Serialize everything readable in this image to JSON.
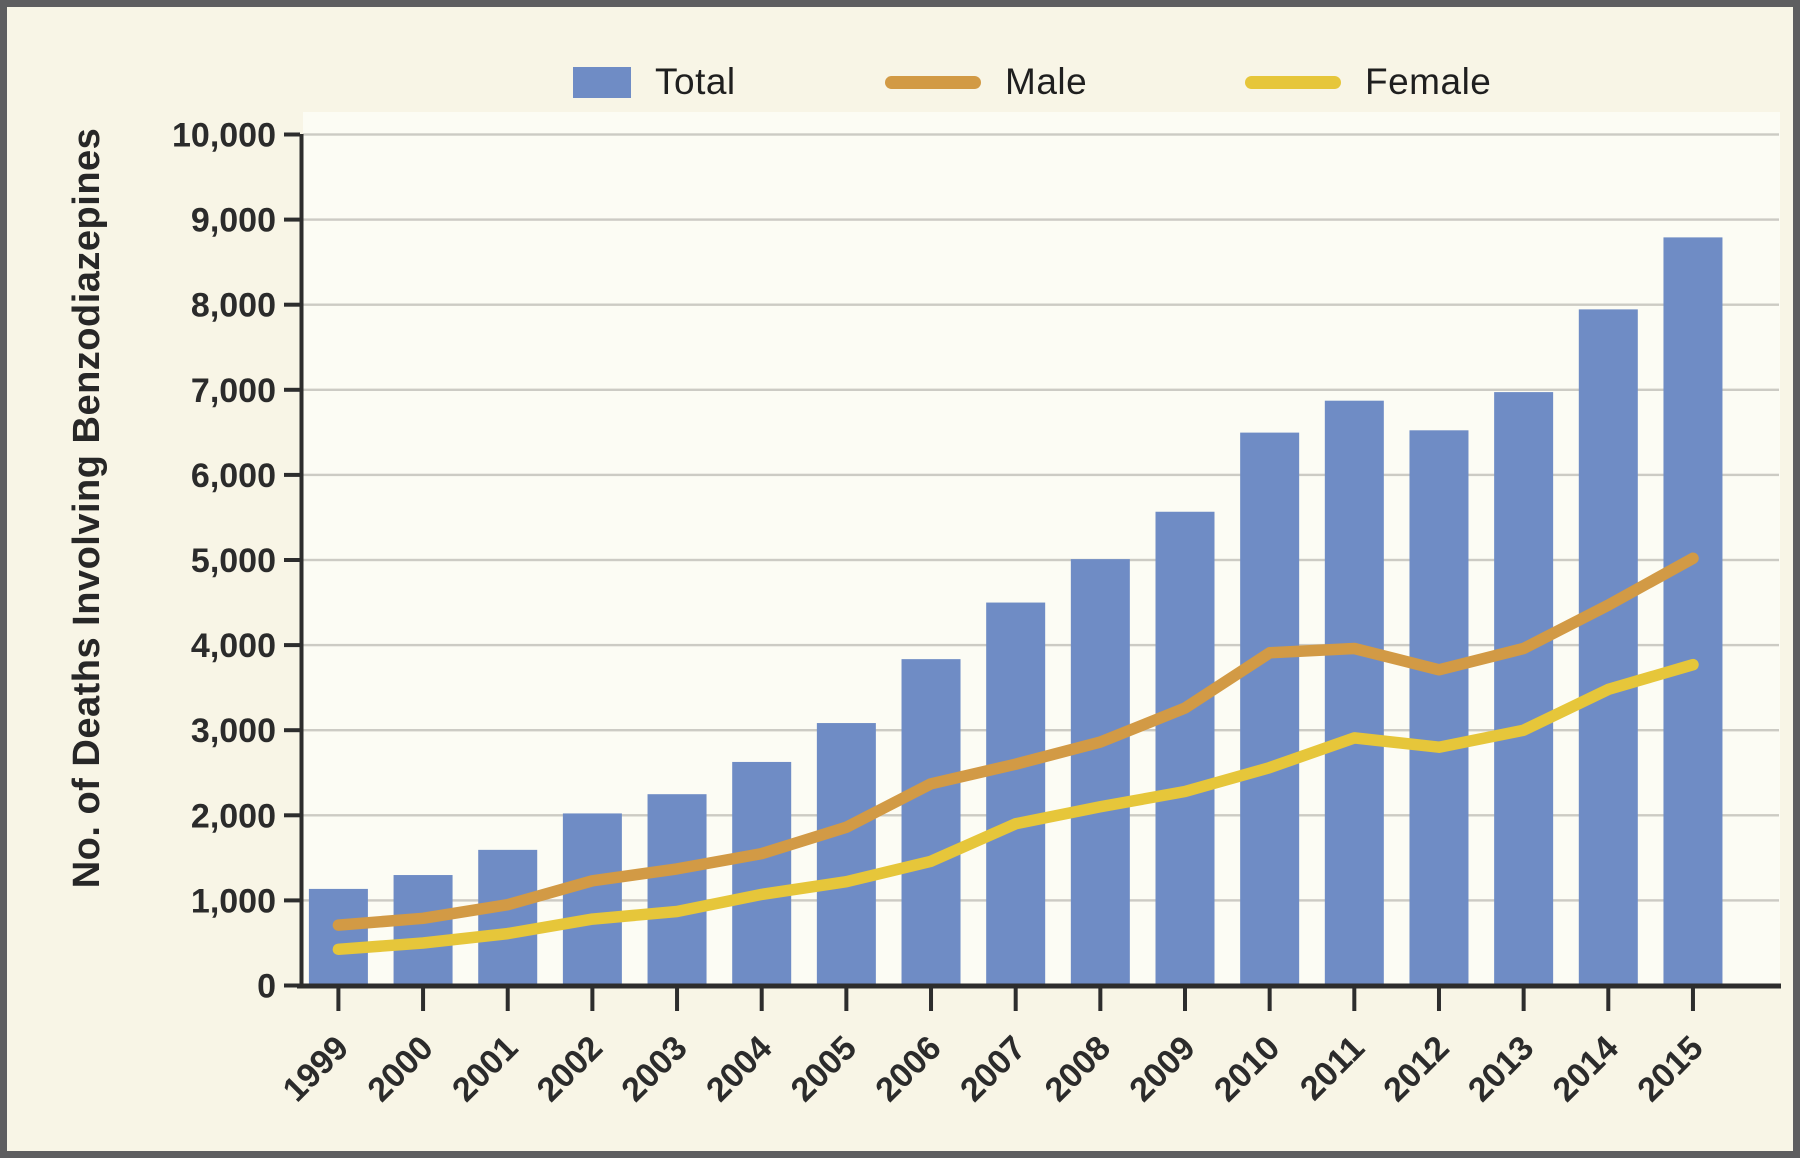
{
  "figure": {
    "ylabel": "No. of Deaths Involving Benzodiazepines",
    "legend": [
      {
        "label": "Total",
        "swatch": "square",
        "color": "#6f8cc5"
      },
      {
        "label": "Male",
        "swatch": "line",
        "color": "#d29a45"
      },
      {
        "label": "Female",
        "swatch": "line",
        "color": "#e6c63a"
      }
    ],
    "colors": {
      "background": "#f8f5e6",
      "plot_background": "#fcfcf4",
      "axis": "#2d2d2d",
      "gridline": "#cccbc4",
      "tick_text": "#2b2b2b",
      "frame_border": "#5e5e60"
    }
  },
  "chart_data": {
    "type": "bar",
    "title": "",
    "xlabel": "",
    "ylabel": "No. of Deaths Involving Benzodiazepines",
    "categories": [
      "1999",
      "2000",
      "2001",
      "2002",
      "2003",
      "2004",
      "2005",
      "2006",
      "2007",
      "2008",
      "2009",
      "2010",
      "2011",
      "2012",
      "2013",
      "2014",
      "2015"
    ],
    "series": [
      {
        "name": "Total",
        "type": "bar",
        "color": "#6f8cc5",
        "values": [
          1135,
          1298,
          1594,
          2022,
          2248,
          2627,
          3084,
          3835,
          4500,
          5010,
          5567,
          6497,
          6872,
          6524,
          6973,
          7945,
          8791
        ]
      },
      {
        "name": "Male",
        "type": "line",
        "color": "#d29a45",
        "values": [
          710,
          790,
          950,
          1230,
          1370,
          1550,
          1860,
          2370,
          2600,
          2860,
          3260,
          3910,
          3960,
          3710,
          3960,
          4470,
          5020
        ]
      },
      {
        "name": "Female",
        "type": "line",
        "color": "#e6c63a",
        "values": [
          425,
          500,
          610,
          780,
          870,
          1070,
          1220,
          1460,
          1900,
          2100,
          2280,
          2560,
          2910,
          2800,
          3000,
          3480,
          3770
        ]
      }
    ],
    "ylim": [
      0,
      10000
    ],
    "grid": true,
    "legend_position": "top",
    "y_ticks": [
      {
        "value": 0,
        "label": "0"
      },
      {
        "value": 1000,
        "label": "1,000"
      },
      {
        "value": 2000,
        "label": "2,000"
      },
      {
        "value": 3000,
        "label": "3,000"
      },
      {
        "value": 4000,
        "label": "4,000"
      },
      {
        "value": 5000,
        "label": "5,000"
      },
      {
        "value": 6000,
        "label": "6,000"
      },
      {
        "value": 7000,
        "label": "7,000"
      },
      {
        "value": 8000,
        "label": "8,000"
      },
      {
        "value": 9000,
        "label": "9,000"
      },
      {
        "value": 10000,
        "label": "10,000"
      }
    ]
  }
}
